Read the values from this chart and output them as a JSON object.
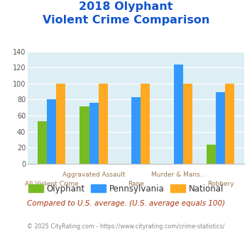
{
  "title_line1": "2018 Olyphant",
  "title_line2": "Violent Crime Comparison",
  "categories": [
    "All Violent Crime",
    "Aggravated Assault",
    "Rape",
    "Murder & Mans...",
    "Robbery"
  ],
  "olyphant": [
    53,
    72,
    0,
    0,
    24
  ],
  "pennsylvania": [
    80,
    76,
    83,
    124,
    89
  ],
  "national": [
    100,
    100,
    100,
    100,
    100
  ],
  "color_olyphant": "#77bb22",
  "color_pennsylvania": "#3399ff",
  "color_national": "#ffaa22",
  "ylim": [
    0,
    140
  ],
  "yticks": [
    0,
    20,
    40,
    60,
    80,
    100,
    120,
    140
  ],
  "bg_color": "#ddeef5",
  "legend_labels": [
    "Olyphant",
    "Pennsylvania",
    "National"
  ],
  "footnote1": "Compared to U.S. average. (U.S. average equals 100)",
  "footnote2": "© 2025 CityRating.com - https://www.cityrating.com/crime-statistics/",
  "title_color": "#1155cc",
  "footnote1_color": "#aa3311",
  "footnote2_color": "#888888",
  "xlabel_color": "#997755",
  "tick_label_color": "#555555",
  "bar_width": 0.22
}
